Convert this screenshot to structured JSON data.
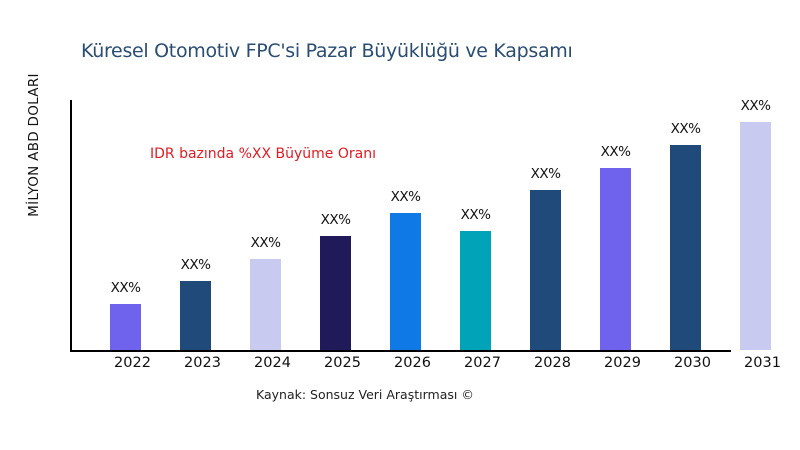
{
  "chart_data": {
    "type": "bar",
    "title": "Küresel Otomotiv FPC'si Pazar Büyüklüğü ve Kapsamı",
    "xlabel": "",
    "ylabel": "MİLYON ABD DOLARI",
    "categories": [
      "2022",
      "2023",
      "2024",
      "2025",
      "2026",
      "2027",
      "2028",
      "2029",
      "2030",
      "2031"
    ],
    "values": [
      46,
      69,
      91,
      114,
      137,
      119,
      160,
      182,
      205,
      228
    ],
    "value_labels": [
      "XX%",
      "XX%",
      "XX%",
      "XX%",
      "XX%",
      "XX%",
      "XX%",
      "XX%",
      "XX%",
      "XX%"
    ],
    "colors": [
      "#6f63ee",
      "#1f4a7a",
      "#c8caef",
      "#20195a",
      "#0f7ae5",
      "#00a3b8",
      "#1f4a7a",
      "#6f63ee",
      "#1f4a7a",
      "#c8caef"
    ],
    "annotation": "IDR bazında %XX Büyüme Oranı",
    "source": "Kaynak: Sonsuz Veri Araştırması ©",
    "grid": false,
    "legend": "none",
    "ylim": [
      0,
      250
    ]
  }
}
